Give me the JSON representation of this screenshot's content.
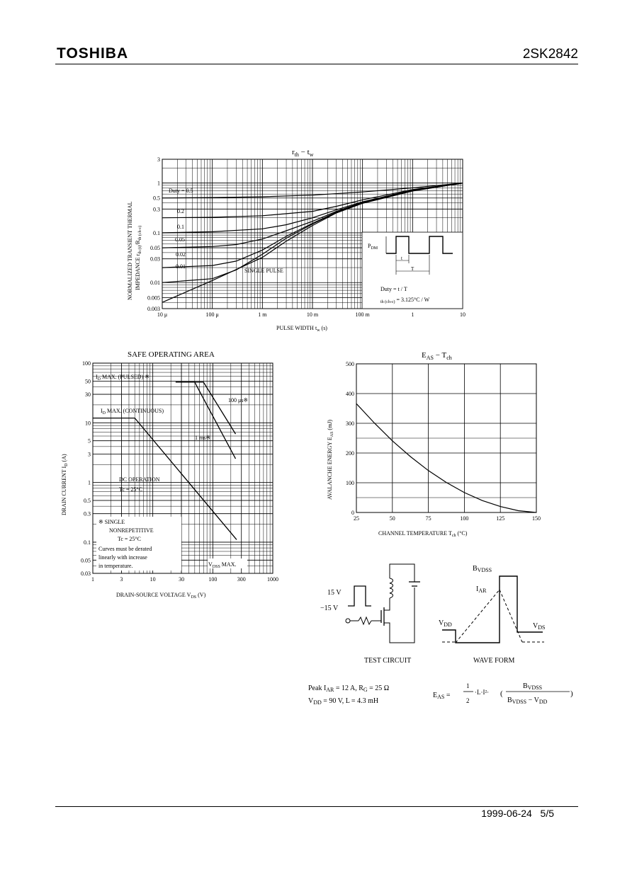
{
  "header": {
    "brand": "TOSHIBA",
    "part_number": "2SK2842"
  },
  "footer": {
    "date": "1999-06-24",
    "page": "5/5"
  },
  "chart_data": [
    {
      "type": "line",
      "id": "rth-tw",
      "title_main": "r",
      "title_sub": "th",
      "title_dash": " − ",
      "title_main2": "t",
      "title_sub2": "w",
      "xscale": "log",
      "yscale": "log",
      "xlim": [
        1e-05,
        10
      ],
      "ylim": [
        0.003,
        3
      ],
      "xlabel": "PULSE WIDTH   t",
      "xlabel_sub": "w",
      "xlabel_unit": "  (s)",
      "ylabel_line1": "NORMALIZED TRANSIENT THERMAL",
      "ylabel_line2": "IMPEDANCE   r",
      "ylabel_line2_sub": "th (t)",
      "ylabel_line2_mid": "/R",
      "ylabel_line2_sub2": "th (ch-c)",
      "x_ticks": [
        {
          "v": 1e-05,
          "label": "10 μ"
        },
        {
          "v": 0.0001,
          "label": "100 μ"
        },
        {
          "v": 0.001,
          "label": "1 m"
        },
        {
          "v": 0.01,
          "label": "10 m"
        },
        {
          "v": 0.1,
          "label": "100 m"
        },
        {
          "v": 1,
          "label": "1"
        },
        {
          "v": 10,
          "label": "10"
        }
      ],
      "y_ticks": [
        {
          "v": 3,
          "label": "3"
        },
        {
          "v": 1,
          "label": "1"
        },
        {
          "v": 0.5,
          "label": "0.5"
        },
        {
          "v": 0.3,
          "label": "0.3"
        },
        {
          "v": 0.1,
          "label": "0.1"
        },
        {
          "v": 0.05,
          "label": "0.05"
        },
        {
          "v": 0.03,
          "label": "0.03"
        },
        {
          "v": 0.01,
          "label": "0.01"
        },
        {
          "v": 0.005,
          "label": "0.005"
        },
        {
          "v": 0.003,
          "label": "0.003"
        }
      ],
      "series": [
        {
          "name": "Duty = 0.5",
          "x": [
            1e-05,
            0.0001,
            0.001,
            0.01,
            0.1,
            1,
            10
          ],
          "y": [
            0.5,
            0.51,
            0.53,
            0.57,
            0.66,
            0.8,
            1.0
          ]
        },
        {
          "name": "0.2",
          "x": [
            1e-05,
            0.0001,
            0.001,
            0.01,
            0.03,
            0.1,
            1,
            10
          ],
          "y": [
            0.2,
            0.205,
            0.22,
            0.27,
            0.34,
            0.46,
            0.74,
            1.0
          ]
        },
        {
          "name": "0.1",
          "x": [
            1e-05,
            0.0001,
            0.001,
            0.003,
            0.01,
            0.03,
            0.1,
            1,
            10
          ],
          "y": [
            0.1,
            0.105,
            0.12,
            0.145,
            0.2,
            0.29,
            0.42,
            0.72,
            1.0
          ]
        },
        {
          "name": "0.05",
          "x": [
            1e-05,
            0.0001,
            0.0003,
            0.001,
            0.003,
            0.01,
            0.03,
            0.1,
            1,
            10
          ],
          "y": [
            0.05,
            0.053,
            0.058,
            0.075,
            0.11,
            0.17,
            0.27,
            0.41,
            0.71,
            1.0
          ]
        },
        {
          "name": "0.02",
          "x": [
            1e-05,
            0.0001,
            0.0003,
            0.001,
            0.003,
            0.01,
            0.03,
            0.1,
            1,
            10
          ],
          "y": [
            0.02,
            0.022,
            0.027,
            0.045,
            0.085,
            0.155,
            0.26,
            0.4,
            0.7,
            1.0
          ]
        },
        {
          "name": "0.01",
          "x": [
            1e-05,
            0.0001,
            0.0003,
            0.001,
            0.003,
            0.01,
            0.03,
            0.1,
            1,
            10
          ],
          "y": [
            0.01,
            0.012,
            0.018,
            0.037,
            0.078,
            0.15,
            0.255,
            0.4,
            0.7,
            1.0
          ]
        },
        {
          "name": "SINGLE PULSE",
          "x": [
            1e-05,
            0.0001,
            0.001,
            0.003,
            0.01,
            0.03,
            0.1,
            1,
            10
          ],
          "y": [
            0.004,
            0.011,
            0.032,
            0.068,
            0.14,
            0.25,
            0.39,
            0.69,
            1.0
          ]
        }
      ],
      "series_labels": [
        "Duty = 0.5",
        "0.2",
        "0.1",
        "0.05",
        "0.02",
        "0.01",
        "SINGLE PULSE"
      ],
      "inset": {
        "pdm": "P",
        "pdm_sub": "DM",
        "t_label": "t",
        "T_label": "T",
        "duty_text": "Duty = t / T",
        "rth_text": "R",
        "rth_sub": "th (ch-c)",
        "rth_val": " = 3.125°C / W"
      }
    },
    {
      "type": "line",
      "id": "soa",
      "title": "SAFE OPERATING AREA",
      "xscale": "log",
      "yscale": "log",
      "xlim": [
        1,
        1000
      ],
      "ylim": [
        0.03,
        100
      ],
      "xlabel": "DRAIN-SOURCE VOLTAGE   V",
      "xlabel_sub": "DS",
      "xlabel_unit": "  (V)",
      "ylabel": "DRAIN CURRENT   I",
      "ylabel_sub": "D",
      "ylabel_unit": "   (A)",
      "x_ticks": [
        {
          "v": 1,
          "label": "1"
        },
        {
          "v": 3,
          "label": "3"
        },
        {
          "v": 10,
          "label": "10"
        },
        {
          "v": 30,
          "label": "30"
        },
        {
          "v": 100,
          "label": "100"
        },
        {
          "v": 300,
          "label": "300"
        },
        {
          "v": 1000,
          "label": "1000"
        }
      ],
      "y_ticks": [
        {
          "v": 100,
          "label": "100"
        },
        {
          "v": 50,
          "label": "50"
        },
        {
          "v": 30,
          "label": "30"
        },
        {
          "v": 10,
          "label": "10"
        },
        {
          "v": 5,
          "label": "5"
        },
        {
          "v": 3,
          "label": "3"
        },
        {
          "v": 1,
          "label": "1"
        },
        {
          "v": 0.5,
          "label": "0.5"
        },
        {
          "v": 0.3,
          "label": "0.3"
        },
        {
          "v": 0.1,
          "label": "0.1"
        },
        {
          "v": 0.05,
          "label": "0.05"
        },
        {
          "v": 0.03,
          "label": "0.03"
        }
      ],
      "series": [
        {
          "name": "ID max pulsed 100us",
          "x": [
            24,
            70,
            240,
            240
          ],
          "y": [
            48,
            48,
            6.5,
            6.5
          ]
        },
        {
          "name": "1 ms",
          "x": [
            24,
            50,
            240,
            240
          ],
          "y": [
            48,
            48,
            2.5,
            2.5
          ]
        },
        {
          "name": "DC operation",
          "x": [
            1,
            5,
            250,
            250
          ],
          "y": [
            12,
            12,
            0.11,
            0.11
          ]
        }
      ],
      "labels": {
        "id_pulsed": "I",
        "id_pulsed_sub": "D",
        "id_pulsed_rest": " MAX. (PULSED) ※",
        "id_cont": "I",
        "id_cont_sub": "D",
        "id_cont_rest": " MAX. (CONTINUOUS)",
        "us100": "100 μs※",
        "ms1": "1 ms※",
        "dc1": "DC OPERATION",
        "dc2": "Tc = 25°C",
        "note1": "※ SINGLE",
        "note2": "NONREPETITIVE",
        "note3": "Tc = 25°C",
        "note4": "Curves must be derated",
        "note5": "linearly with increase",
        "note6": "in temperature.",
        "vdss": "V",
        "vdss_sub": "DSS",
        "vdss_rest": " MAX."
      }
    },
    {
      "type": "line",
      "id": "eas-tch",
      "title_main": "E",
      "title_sub": "AS",
      "title_dash": " − ",
      "title_main2": "T",
      "title_sub2": "ch",
      "xlim": [
        25,
        150
      ],
      "ylim": [
        0,
        500
      ],
      "xlabel": "CHANNEL TEMPERATURE   T",
      "xlabel_sub": "ch",
      "xlabel_unit": "   (°C)",
      "ylabel": "AVALANCHE ENERGY   E",
      "ylabel_sub": "AS",
      "ylabel_unit": "   (mJ)",
      "x_ticks": [
        {
          "v": 25,
          "label": "25"
        },
        {
          "v": 50,
          "label": "50"
        },
        {
          "v": 75,
          "label": "75"
        },
        {
          "v": 100,
          "label": "100"
        },
        {
          "v": 125,
          "label": "125"
        },
        {
          "v": 150,
          "label": "150"
        }
      ],
      "y_ticks": [
        {
          "v": 500,
          "label": "500"
        },
        {
          "v": 400,
          "label": "400"
        },
        {
          "v": 300,
          "label": "300"
        },
        {
          "v": 200,
          "label": "200"
        },
        {
          "v": 100,
          "label": "100"
        },
        {
          "v": 0,
          "label": "0"
        }
      ],
      "series": [
        {
          "name": "EAS",
          "x": [
            25,
            37.5,
            50,
            62.5,
            75,
            87.5,
            100,
            112.5,
            125,
            137.5,
            150
          ],
          "y": [
            366,
            301,
            241,
            188,
            141,
            101,
            67,
            40,
            20,
            6,
            0
          ]
        }
      ]
    }
  ],
  "circuit": {
    "v_high": "15 V",
    "v_low": "−15 V",
    "caption": "TEST CIRCUIT"
  },
  "waveform": {
    "bvdss": "B",
    "bvdss_sub": "VDSS",
    "iar": "I",
    "iar_sub": "AR",
    "vdd": "V",
    "vdd_sub": "DD",
    "vds": "V",
    "vds_sub": "DS",
    "caption": "WAVE FORM"
  },
  "conditions": {
    "line1_a": "Peak I",
    "line1_a_sub": "AR",
    "line1_b": " = 12 A, R",
    "line1_b_sub": "G",
    "line1_c": " = 25 Ω",
    "line2_a": "V",
    "line2_a_sub": "DD",
    "line2_b": " = 90 V, L = 4.3 mH"
  },
  "formula": {
    "lhs": "E",
    "lhs_sub": "AS",
    "eq": " = ",
    "num_1": "1",
    "den_2": "2",
    "mid": "·L·I²·",
    "paren_open": "(",
    "paren_close": ")",
    "num_b": "B",
    "num_b_sub": "VDSS",
    "den_b": "B",
    "den_b_sub": "VDSS",
    "den_minus": " − V",
    "den_vdd_sub": "DD"
  }
}
